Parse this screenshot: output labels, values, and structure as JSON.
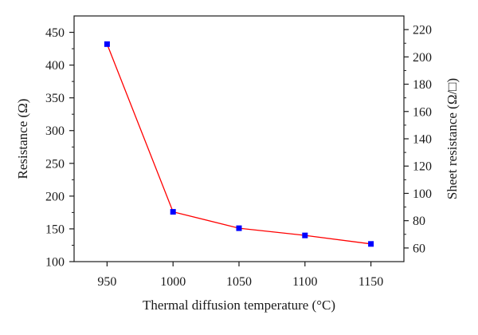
{
  "chart_data": {
    "type": "line",
    "xlabel": "Thermal diffusion temperature (°C)",
    "ylabel": "Resistance (Ω)",
    "ylabel_right": "Sheet resistance (Ω/□)",
    "x_ticks": [
      950,
      1000,
      1050,
      1100,
      1150
    ],
    "xlim": [
      925,
      1175
    ],
    "y_ticks": [
      100,
      150,
      200,
      250,
      300,
      350,
      400,
      450
    ],
    "ylim": [
      100,
      475
    ],
    "y2_ticks": [
      60,
      80,
      100,
      120,
      140,
      160,
      180,
      200,
      220
    ],
    "y2lim": [
      50,
      230
    ],
    "grid": false,
    "series": [
      {
        "x": [
          950,
          1000,
          1050,
          1100,
          1150
        ],
        "values": [
          432,
          176,
          151,
          140,
          127
        ],
        "line_color": "#ff0000",
        "marker_color": "#0000ff",
        "marker": "square"
      }
    ]
  }
}
